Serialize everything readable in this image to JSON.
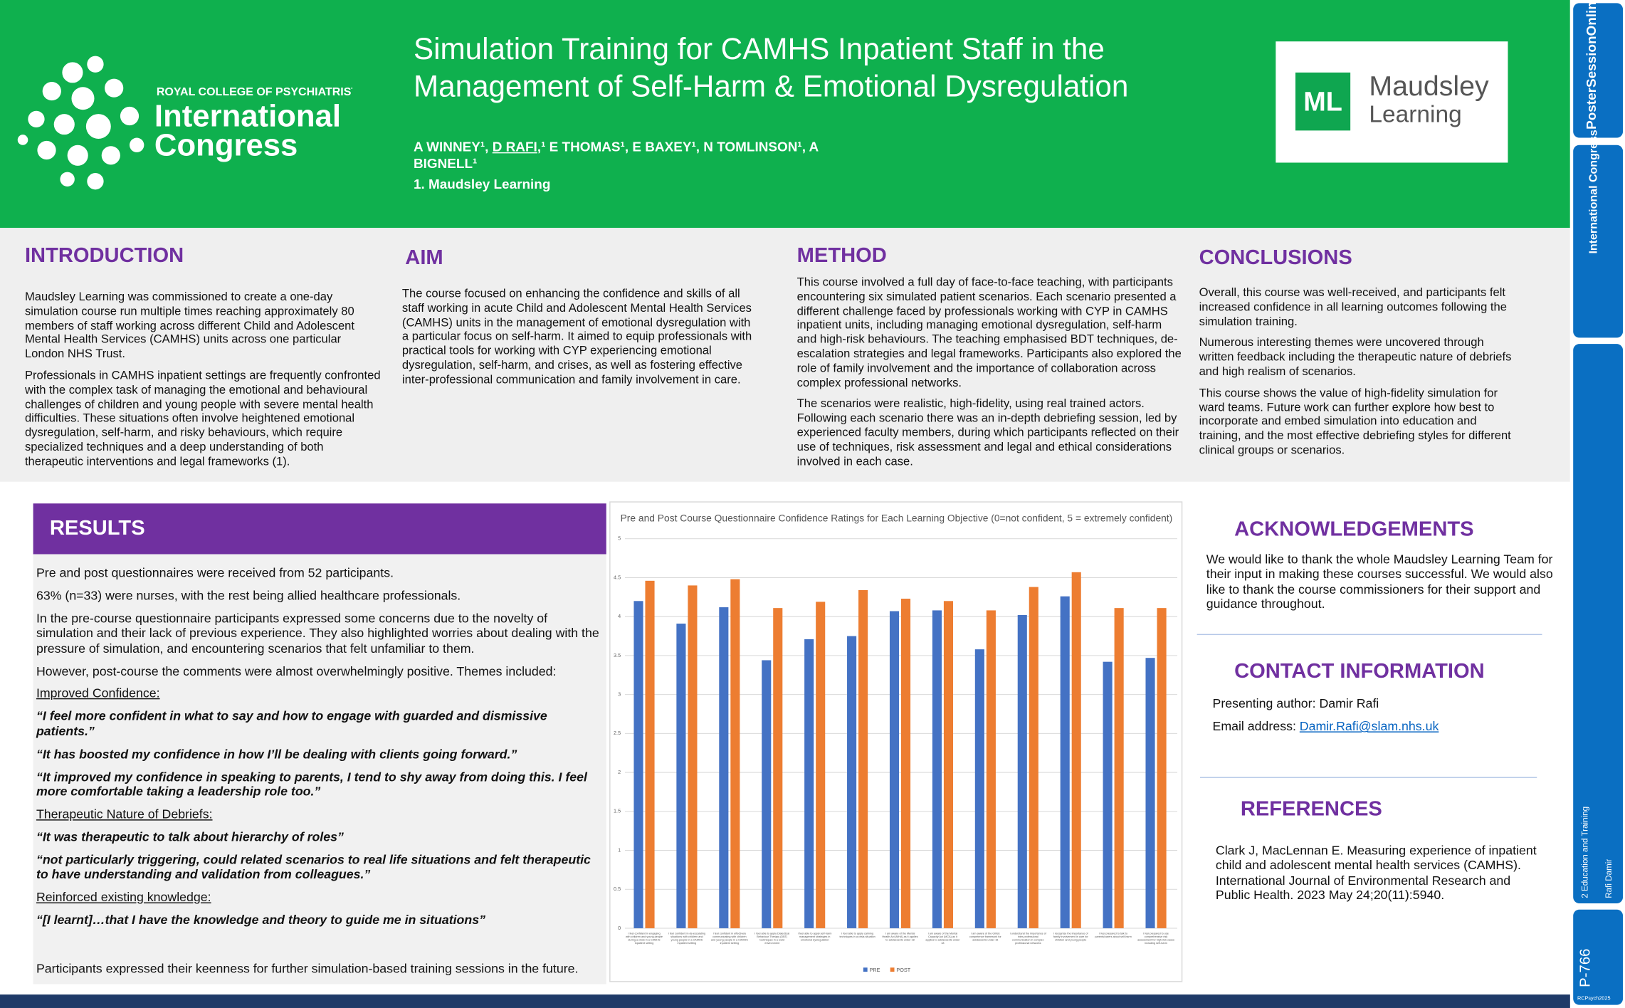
{
  "header": {
    "title": "Simulation Training for CAMHS Inpatient Staff in the Management of Self-Harm & Emotional Dysregulation",
    "authors": [
      "A WINNEY¹, ",
      "D RAFI",
      ",¹ E THOMAS¹, E BAXEY¹, N TOMLINSON¹, A BIGNELL¹"
    ],
    "affiliation": "1. Maudsley Learning",
    "logo": {
      "line1": "ROYAL COLLEGE OF PSYCHIATRISTS",
      "line2": "International",
      "line3": "Congress"
    },
    "partner_logo": {
      "mark": "ML",
      "line1": "Maudsley",
      "line2": "Learning"
    }
  },
  "introduction": {
    "heading": "INTRODUCTION",
    "paragraphs": [
      "Maudsley Learning was commissioned to create a one-day simulation course run multiple times reaching approximately 80 members of staff working across different Child and Adolescent Mental Health Services (CAMHS) units across one particular London NHS Trust.",
      "Professionals in CAMHS inpatient settings are frequently confronted with the complex task of managing the emotional and behavioural challenges of children and young people with severe mental health difficulties. These situations often involve heightened emotional dysregulation, self-harm, and risky behaviours, which require specialized techniques and a deep understanding of both therapeutic interventions and legal frameworks (1)."
    ]
  },
  "aim": {
    "heading": "AIM",
    "paragraphs": [
      "The course focused on enhancing the confidence and skills of all staff working in acute Child and Adolescent Mental Health Services (CAMHS) units in the management of emotional dysregulation with a particular focus on self-harm. It aimed to equip professionals with practical tools for working with CYP experiencing emotional dysregulation, self-harm, and crises, as well as fostering effective inter-professional communication and family involvement in care."
    ]
  },
  "method": {
    "heading": "METHOD",
    "paragraphs": [
      "This course involved a full day of face-to-face teaching, with participants encountering six simulated patient scenarios. Each scenario presented a different challenge faced by professionals working with CYP in CAMHS inpatient units, including managing emotional dysregulation, self-harm and high-risk behaviours. The teaching emphasised BDT techniques, de-escalation strategies and legal frameworks. Participants also explored the role of family involvement and the importance of collaboration across complex professional networks.",
      "The scenarios were realistic, high-fidelity, using real trained actors. Following each scenario there was an in-depth debriefing session, led by experienced faculty members, during which participants reflected on their use of techniques, risk assessment and legal and ethical considerations involved in each case."
    ]
  },
  "conclusions": {
    "heading": "CONCLUSIONS",
    "paragraphs": [
      "Overall, this course was well-received, and participants felt increased confidence in all learning outcomes following the simulation training.",
      "Numerous interesting themes were uncovered through written feedback including the therapeutic nature of debriefs and high realism of scenarios.",
      "This course shows the value of high-fidelity simulation for ward teams. Future work can further explore how best to incorporate and embed simulation into education and training, and the most effective debriefing styles for different clinical groups or scenarios."
    ]
  },
  "results": {
    "heading": "RESULTS",
    "paragraphs": [
      "Pre and post questionnaires were received from 52 participants.",
      "63% (n=33) were nurses, with the rest being allied healthcare professionals.",
      "In the pre-course questionnaire participants expressed some concerns due to the novelty of simulation and their lack of previous experience. They also highlighted worries about dealing with the pressure of simulation, and encountering scenarios that felt unfamiliar to them.",
      "However, post-course the comments were almost overwhelmingly positive. Themes included:"
    ],
    "themes": [
      {
        "heading": "Improved Confidence:",
        "quotes": [
          "“I feel more confident in what to say and how to engage with guarded and dismissive patients.”",
          "“It has boosted my confidence in how I’ll be dealing with clients going forward.”",
          "“It improved my confidence in speaking to parents, I tend to shy away from doing this. I feel more comfortable taking a leadership role too.”"
        ]
      },
      {
        "heading": "Therapeutic Nature of Debriefs:",
        "quotes": [
          "“It was therapeutic to talk about hierarchy of roles”",
          "“not particularly triggering, could related scenarios to real life situations and felt therapeutic to have understanding and validation from colleagues.”"
        ]
      },
      {
        "heading": "Reinforced existing knowledge:",
        "quotes": [
          "“[I learnt]…that I have the knowledge and theory to guide me in situations”"
        ]
      }
    ],
    "closing": "Participants expressed their keenness for further simulation-based training sessions in the future."
  },
  "chart_data": {
    "type": "bar",
    "title": "Pre and Post Course Questionnaire Confidence Ratings for Each Learning Objective (0=not confident, 5 = extremely confident)",
    "categories": [
      "I feel confident in engaging with children and young people during a crisis in a CAMHS inpatient setting",
      "I feel confident in de-escalating situations with children and young people in a CAMHS inpatient setting",
      "I feel confident in effectively communicating with children and young people in a CAMHS inpatient setting",
      "I feel able to apply Dialectical Behaviour Therapy (DBT) techniques in a ward environment",
      "I feel able to apply self-harm management strategies in emotional dysregulation",
      "I feel able to apply calming techniques in a crisis situation",
      "I am aware of the Mental Health Act (MHA) as it applies to adolescents under 18",
      "I am aware of the Mental Capacity Act (MCA) as it applies to adolescents under 18",
      "I am aware of the Gillick competence framework for adolescents under 16",
      "I understand the importance of inter-professional communication in complex professional networks",
      "I recognise the importance of family involvement in care for children and young people",
      "I feel prepared to talk to parents/carers about self-harm",
      "I feel prepared to use comprehensive risk assessment for high-risk cases including self-harm"
    ],
    "series": [
      {
        "name": "PRE",
        "color": "#4472c4",
        "values": [
          4.2,
          3.91,
          4.12,
          3.44,
          3.71,
          3.75,
          4.07,
          4.08,
          3.58,
          4.02,
          4.26,
          3.42,
          3.47
        ]
      },
      {
        "name": "POST",
        "color": "#ed7d31",
        "values": [
          4.46,
          4.4,
          4.48,
          4.11,
          4.19,
          4.34,
          4.23,
          4.2,
          4.08,
          4.38,
          4.57,
          4.11,
          4.11
        ]
      }
    ],
    "ylim": [
      0,
      5
    ],
    "yticks": [
      0,
      0.5,
      1,
      1.5,
      2,
      2.5,
      3,
      3.5,
      4,
      4.5,
      5
    ],
    "grid": true,
    "legend": "bottom"
  },
  "acknowledgements": {
    "heading": "ACKNOWLEDGEMENTS",
    "text": "We would like to thank the whole Maudsley Learning Team for their input in making these courses successful. We would also like to thank the course commissioners for their support and guidance throughout."
  },
  "contact": {
    "heading": "CONTACT INFORMATION",
    "author": "Presenting author: Damir Rafi",
    "email_label": "Email address:",
    "email": "Damir.Rafi@slam.nhs.uk"
  },
  "references": {
    "heading": "REFERENCES",
    "items": [
      "Clark J, MacLennan E. Measuring experience of inpatient child and adolescent mental health services (CAMHS). International Journal of Environmental Research and Public Health. 2023 May 24;20(11):5940."
    ]
  },
  "sidebar": {
    "brand": "PosterSessionOnline",
    "congress": "International Congress",
    "track": "2 Education and Training",
    "author": "Rafi Damir",
    "poster_id": "P-766",
    "tag": "RCPsych2025"
  }
}
